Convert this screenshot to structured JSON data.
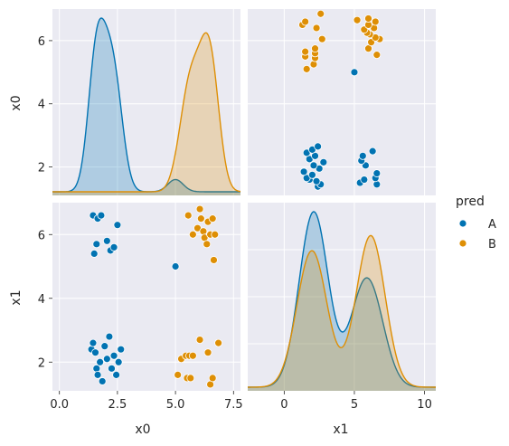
{
  "chart_data": {
    "type": "pairplot",
    "variables": [
      "x0",
      "x1"
    ],
    "hue": "pred",
    "legend": {
      "title": "pred",
      "placement": "right",
      "entries": [
        {
          "label": "A",
          "color": "#0173b2"
        },
        {
          "label": "B",
          "color": "#de8f05"
        }
      ]
    },
    "axes": {
      "x0": {
        "label": "x0",
        "lim": [
          -0.3,
          7.8
        ],
        "ticks": [
          0.0,
          2.5,
          5.0,
          7.5
        ],
        "tick_labels": [
          "0.0",
          "2.5",
          "5.0",
          "7.5"
        ]
      },
      "x1": {
        "label": "x1",
        "lim": [
          -2.6,
          10.8
        ],
        "ticks": [
          0,
          5,
          10
        ],
        "tick_labels": [
          "0",
          "5",
          "10"
        ]
      },
      "x0_as_y": {
        "lim": [
          1.1,
          7.0
        ],
        "ticks": [
          2,
          4,
          6
        ],
        "tick_labels": [
          "2",
          "4",
          "6"
        ]
      },
      "x1_as_y": {
        "lim": [
          1.1,
          7.0
        ],
        "ticks": [
          2,
          4,
          6
        ],
        "tick_labels": [
          "2",
          "4",
          "6"
        ]
      },
      "density_ymax": 1.0
    },
    "grid": true,
    "series": [
      {
        "name": "A",
        "color": "#0173b2",
        "points": [
          {
            "x0": 1.38,
            "x1": 2.4
          },
          {
            "x0": 1.45,
            "x1": 2.6
          },
          {
            "x0": 1.55,
            "x1": 2.3
          },
          {
            "x0": 1.6,
            "x1": 1.8
          },
          {
            "x0": 1.65,
            "x1": 1.6
          },
          {
            "x0": 1.75,
            "x1": 2.0
          },
          {
            "x0": 1.85,
            "x1": 1.4
          },
          {
            "x0": 1.95,
            "x1": 2.5
          },
          {
            "x0": 2.05,
            "x1": 2.1
          },
          {
            "x0": 2.15,
            "x1": 2.8
          },
          {
            "x0": 2.25,
            "x1": 1.8
          },
          {
            "x0": 2.35,
            "x1": 2.2
          },
          {
            "x0": 2.45,
            "x1": 1.6
          },
          {
            "x0": 2.55,
            "x1": 2.0
          },
          {
            "x0": 2.65,
            "x1": 2.4
          },
          {
            "x0": 1.5,
            "x1": 5.4
          },
          {
            "x0": 1.6,
            "x1": 5.7
          },
          {
            "x0": 1.45,
            "x1": 6.6
          },
          {
            "x0": 1.65,
            "x1": 6.5
          },
          {
            "x0": 1.8,
            "x1": 6.6
          },
          {
            "x0": 2.05,
            "x1": 5.8
          },
          {
            "x0": 2.2,
            "x1": 5.5
          },
          {
            "x0": 2.35,
            "x1": 5.6
          },
          {
            "x0": 2.5,
            "x1": 6.3
          },
          {
            "x0": 5.0,
            "x1": 5.0
          }
        ]
      },
      {
        "name": "B",
        "color": "#de8f05",
        "points": [
          {
            "x0": 5.1,
            "x1": 1.6
          },
          {
            "x0": 5.25,
            "x1": 2.1
          },
          {
            "x0": 5.45,
            "x1": 2.2
          },
          {
            "x0": 5.5,
            "x1": 1.5
          },
          {
            "x0": 5.6,
            "x1": 2.2
          },
          {
            "x0": 5.65,
            "x1": 1.5
          },
          {
            "x0": 5.75,
            "x1": 2.2
          },
          {
            "x0": 6.05,
            "x1": 2.7
          },
          {
            "x0": 6.4,
            "x1": 2.3
          },
          {
            "x0": 6.5,
            "x1": 1.3
          },
          {
            "x0": 6.6,
            "x1": 1.5
          },
          {
            "x0": 6.85,
            "x1": 2.6
          },
          {
            "x0": 5.55,
            "x1": 6.6
          },
          {
            "x0": 5.75,
            "x1": 6.0
          },
          {
            "x0": 5.95,
            "x1": 6.2
          },
          {
            "x0": 6.05,
            "x1": 6.8
          },
          {
            "x0": 6.1,
            "x1": 6.5
          },
          {
            "x0": 6.2,
            "x1": 6.1
          },
          {
            "x0": 6.25,
            "x1": 5.9
          },
          {
            "x0": 6.35,
            "x1": 5.7
          },
          {
            "x0": 6.4,
            "x1": 6.4
          },
          {
            "x0": 6.5,
            "x1": 6.0
          },
          {
            "x0": 6.6,
            "x1": 6.5
          },
          {
            "x0": 6.7,
            "x1": 6.0
          },
          {
            "x0": 6.65,
            "x1": 5.2
          }
        ]
      }
    ]
  }
}
